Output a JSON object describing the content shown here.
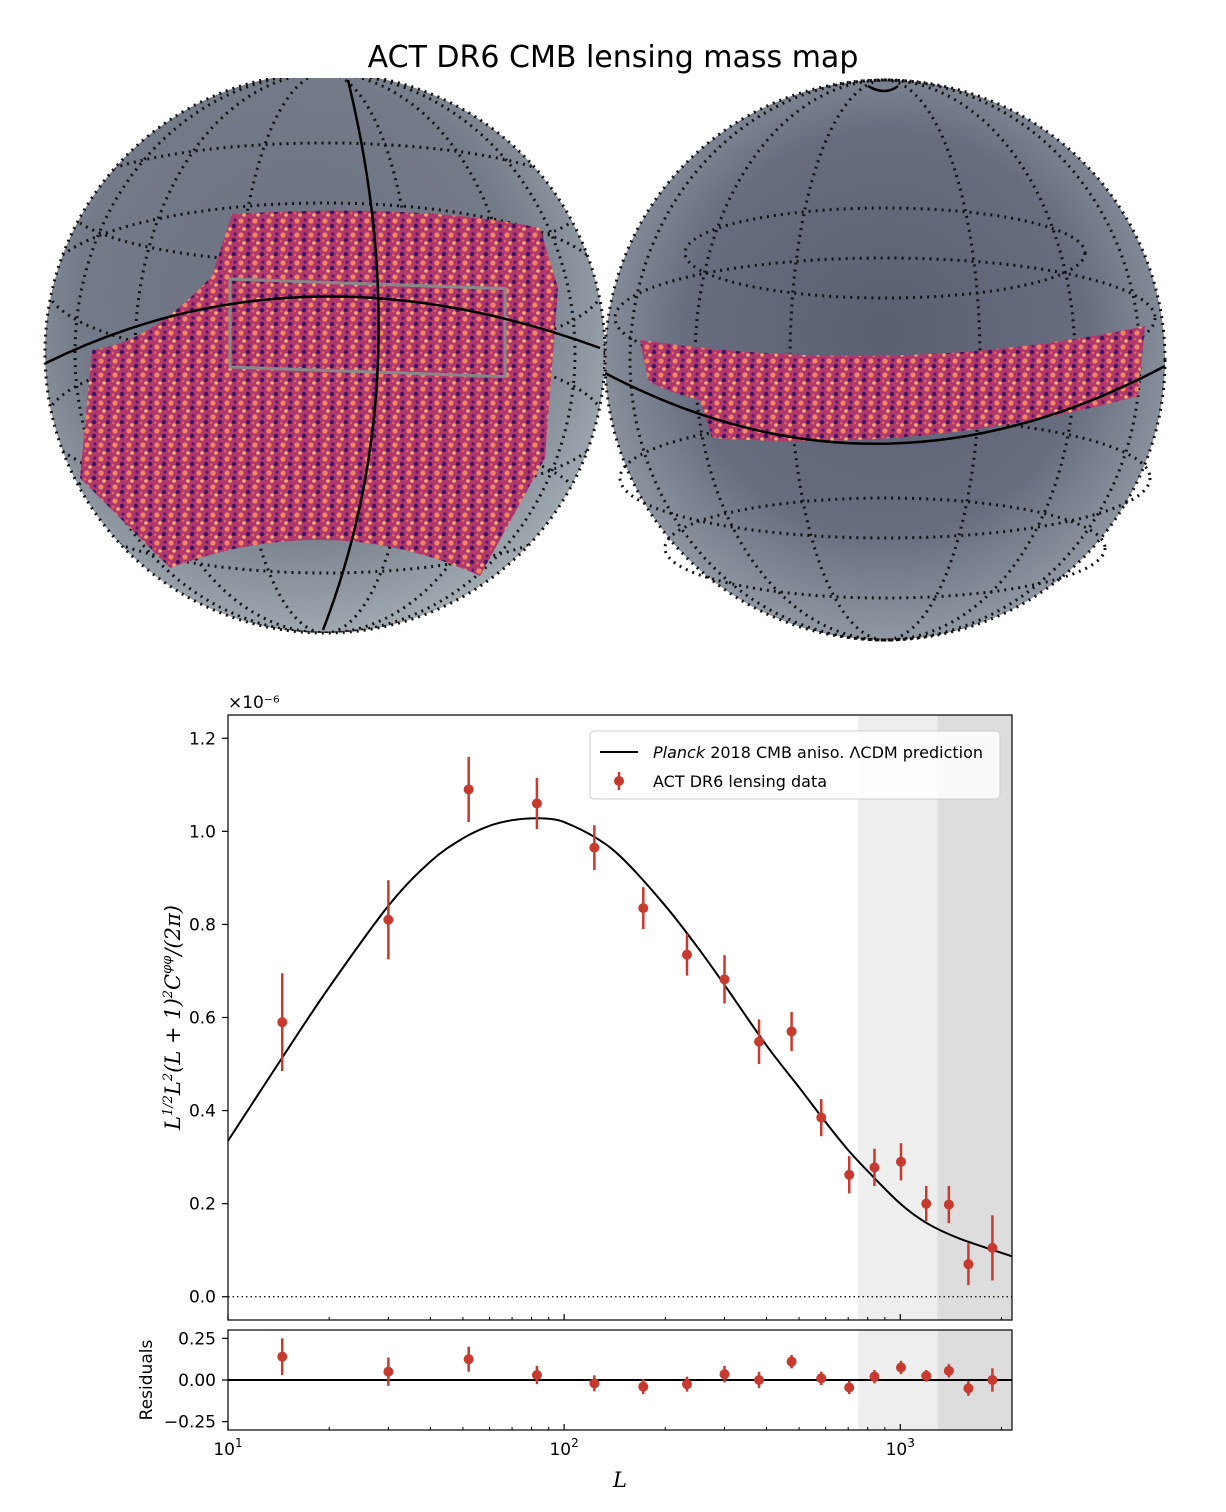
{
  "title": "ACT DR6 CMB lensing mass map",
  "colors": {
    "data": "#c8392e",
    "model": "#000000",
    "shade_light": "#eeeeee",
    "shade_dark": "#dddddd",
    "map_gray": "#7d8591",
    "map_lensing": "#b83a6a"
  },
  "chart_data": [
    {
      "type": "scatter",
      "panel": "main",
      "x_scale": "log",
      "xlim": [
        10,
        2150
      ],
      "ylim": [
        -0.05,
        1.25
      ],
      "y_multiplier_label": "×10⁻⁶",
      "ylabel": "L^{1/2}L^2(L+1)^2 C_L^{φφ}/(2π)",
      "y_ticks": [
        0.0,
        0.2,
        0.4,
        0.6,
        0.8,
        1.0,
        1.2
      ],
      "y_tick_labels": [
        "0.0",
        "0.2",
        "0.4",
        "0.6",
        "0.8",
        "1.0",
        "1.2"
      ],
      "shaded_regions": [
        {
          "from": 750,
          "to": 1290,
          "shade": "light"
        },
        {
          "from": 1290,
          "to": 2150,
          "shade": "dark"
        }
      ],
      "zero_line": {
        "style": "dotted",
        "y": 0
      },
      "legend": {
        "placement": "top-right",
        "entries": [
          {
            "italic": "Planck",
            "text": " 2018 CMB aniso. ΛCDM prediction",
            "kind": "line"
          },
          {
            "text": "ACT DR6 lensing data",
            "kind": "errorbar"
          }
        ]
      },
      "series": [
        {
          "name": "Planck 2018 CMB aniso. ΛCDM prediction",
          "kind": "line",
          "x": [
            10,
            15,
            20,
            30,
            40,
            50,
            60,
            70,
            80,
            90,
            100,
            125,
            150,
            200,
            250,
            300,
            400,
            500,
            600,
            700,
            800,
            1000,
            1200,
            1500,
            2150
          ],
          "y": [
            0.335,
            0.53,
            0.665,
            0.84,
            0.935,
            0.985,
            1.012,
            1.024,
            1.028,
            1.027,
            1.02,
            0.985,
            0.94,
            0.84,
            0.75,
            0.67,
            0.54,
            0.45,
            0.375,
            0.315,
            0.27,
            0.2,
            0.158,
            0.125,
            0.087
          ]
        },
        {
          "name": "ACT DR6 lensing data",
          "kind": "errorbar",
          "x": [
            14.5,
            30,
            52,
            83,
            123,
            172,
            232,
            300,
            380,
            475,
            582,
            705,
            838,
            1005,
            1195,
            1395,
            1595,
            1880
          ],
          "y": [
            0.59,
            0.81,
            1.09,
            1.06,
            0.965,
            0.835,
            0.735,
            0.682,
            0.548,
            0.57,
            0.385,
            0.262,
            0.278,
            0.29,
            0.2,
            0.198,
            0.07,
            0.105
          ],
          "err": [
            0.105,
            0.085,
            0.07,
            0.055,
            0.048,
            0.045,
            0.045,
            0.052,
            0.048,
            0.042,
            0.04,
            0.04,
            0.04,
            0.04,
            0.038,
            0.04,
            0.045,
            0.07
          ]
        }
      ]
    },
    {
      "type": "scatter",
      "panel": "residuals",
      "x_scale": "log",
      "xlim": [
        10,
        2150
      ],
      "ylim": [
        -0.3,
        0.3
      ],
      "ylabel": "Residuals",
      "xlabel": "L",
      "x_ticks": [
        10,
        100,
        1000
      ],
      "x_tick_labels": [
        {
          "base": "10",
          "exp": "1"
        },
        {
          "base": "10",
          "exp": "2"
        },
        {
          "base": "10",
          "exp": "3"
        }
      ],
      "y_ticks": [
        0.25,
        0.0,
        -0.25
      ],
      "y_tick_labels": [
        "0.25",
        "0.00",
        "−0.25"
      ],
      "series": [
        {
          "name": "Residuals",
          "kind": "errorbar",
          "x": [
            14.5,
            30,
            52,
            83,
            123,
            172,
            232,
            300,
            380,
            475,
            582,
            705,
            838,
            1005,
            1195,
            1395,
            1595,
            1880
          ],
          "y": [
            0.14,
            0.05,
            0.125,
            0.03,
            -0.02,
            -0.04,
            -0.025,
            0.035,
            0.0,
            0.11,
            0.01,
            -0.045,
            0.02,
            0.075,
            0.025,
            0.055,
            -0.05,
            0.0
          ],
          "err": [
            0.11,
            0.085,
            0.075,
            0.055,
            0.048,
            0.045,
            0.045,
            0.05,
            0.048,
            0.04,
            0.04,
            0.04,
            0.04,
            0.04,
            0.035,
            0.04,
            0.045,
            0.07
          ]
        }
      ]
    }
  ]
}
